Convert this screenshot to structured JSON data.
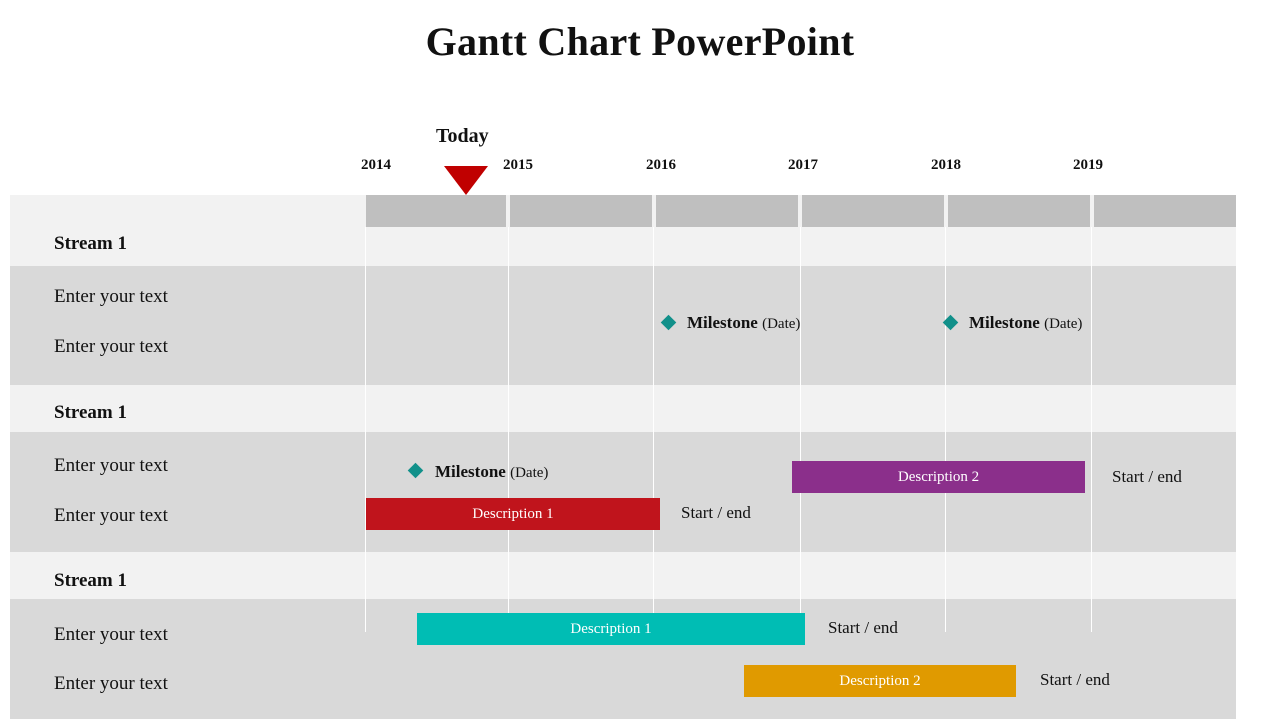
{
  "title": "Gantt Chart PowerPoint",
  "today_label": "Today",
  "years": [
    "2014",
    "2015",
    "2016",
    "2017",
    "2018",
    "2019"
  ],
  "groups": [
    {
      "stream": "Stream 1",
      "rows": [
        "Enter your text",
        "Enter your text"
      ],
      "milestones": [
        {
          "label": "Milestone",
          "date": "(Date)"
        },
        {
          "label": "Milestone",
          "date": "(Date)"
        }
      ],
      "bars": []
    },
    {
      "stream": "Stream 1",
      "rows": [
        "Enter your text",
        "Enter your text"
      ],
      "milestones": [
        {
          "label": "Milestone",
          "date": "(Date)"
        }
      ],
      "bars": [
        {
          "label": "Description 2",
          "start_end": "Start / end",
          "color": "#8b2f8b"
        },
        {
          "label": "Description 1",
          "start_end": "Start / end",
          "color": "#c0141c"
        }
      ]
    },
    {
      "stream": "Stream 1",
      "rows": [
        "Enter your text",
        "Enter your text"
      ],
      "milestones": [],
      "bars": [
        {
          "label": "Description 1",
          "start_end": "Start / end",
          "color": "#00bdb4"
        },
        {
          "label": "Description 2",
          "start_end": "Start / end",
          "color": "#e09a00"
        }
      ]
    }
  ]
}
